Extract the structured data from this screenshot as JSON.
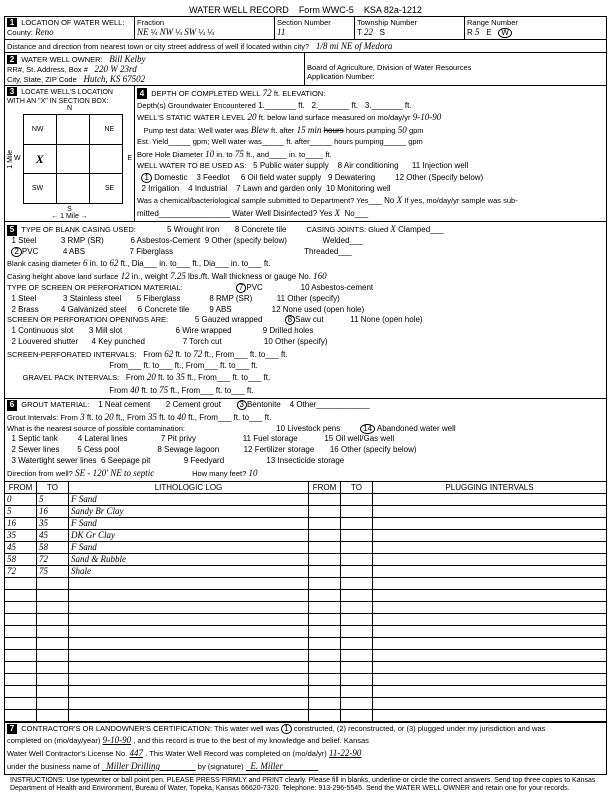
{
  "form": {
    "title": "WATER WELL RECORD",
    "form_no": "Form WWC-5",
    "ksa": "KSA 82a-1212"
  },
  "loc": {
    "header": "LOCATION OF WATER WELL:",
    "county_lbl": "County:",
    "county": "Reno",
    "fraction_lbl": "Fraction",
    "frac1": "NE",
    "q1": "¼",
    "frac2": "NW",
    "q2": "¼",
    "frac3": "SW",
    "q3": "¼",
    "sec_lbl": "Section Number",
    "sec": "11",
    "twp_lbl": "Township Number",
    "twp_t": "T",
    "twp": "22",
    "twp_s": "S",
    "rng_lbl": "Range Number",
    "rng_r": "R",
    "rng": "5",
    "rng_e": "E",
    "rng_w": "W",
    "dist_lbl": "Distance and direction from nearest town or city street address of well if located within city?",
    "dist": "1/8 mi NE of Medora"
  },
  "owner": {
    "header": "WATER WELL OWNER:",
    "name": "Bill Kelby",
    "rr_lbl": "RR#, St. Address, Box #",
    "addr": "220 W 23rd",
    "city_lbl": "City, State, ZIP Code",
    "city": "Hutch, KS  67502",
    "board": "Board of Agriculture, Division of Water Resources",
    "app_lbl": "Application Number:"
  },
  "sec3": {
    "header": "LOCATE WELL'S LOCATION WITH AN \"X\" IN SECTION BOX:",
    "n": "N",
    "s": "S",
    "e": "E",
    "w": "W",
    "nw": "NW",
    "ne": "NE",
    "sw": "SW",
    "se": "SE",
    "x": "X",
    "mile": "1 Mile",
    "mile2": "← 1 Mile →"
  },
  "sec4": {
    "depth_lbl": "DEPTH OF COMPLETED WELL",
    "depth": "72",
    "ft": "ft. ELEVATION:",
    "gw_lbl": "Depth(s) Groundwater Encountered",
    "gw1": "1.",
    "gw2": "2.",
    "gw3": "3.",
    "ft2": "ft.",
    "static_lbl": "WELL'S STATIC WATER LEVEL",
    "static": "20",
    "static2": "ft. below land surface measured on mo/day/yr",
    "static_date": "9-10-90",
    "pump_lbl": "Pump test data:   Well water was",
    "pump": "Blew",
    "pump2": "ft. after",
    "pump_hrs": "15 min",
    "pump3": "hours pumping",
    "pump_gpm": "50",
    "pump4": "gpm",
    "est_lbl": "Est. Yield",
    "est2": "gpm;  Well water was",
    "est3": "ft. after",
    "est4": "hours pumping",
    "est5": "gpm",
    "bore_lbl": "Bore Hole Diameter",
    "bore1": "10",
    "bore_in": "in. to",
    "bore2": "75",
    "bore3": "ft., and",
    "bore4": "in. to",
    "bore5": "ft.",
    "use_lbl": "WELL WATER TO BE USED AS:",
    "u1": "Domestic",
    "u2": "2 Irrigation",
    "u3": "3 Feedlot",
    "u4": "4 Industrial",
    "u5": "5 Public water supply",
    "u6": "6 Oil field water supply",
    "u7": "7 Lawn and garden only",
    "u8": "8 Air conditioning",
    "u9": "9 Dewatering",
    "u10": "10 Monitoring well",
    "u11": "11 Injection well",
    "u12": "12 Other (Specify below)",
    "chem_lbl": "Was a chemical/bacteriological sample submitted to Department?  Yes",
    "chem_no": "No",
    "chem2": "If yes, mo/day/yr sample was sub-",
    "mitted": "mitted",
    "disinfect": "Water Well Disinfected?  Yes",
    "dis_no": "No",
    "dis_x": "X"
  },
  "sec5": {
    "header": "TYPE OF BLANK CASING USED:",
    "c1": "1 Steel",
    "c2": "PVC",
    "c3": "3 RMP (SR)",
    "c4": "4 ABS",
    "c5": "5 Wrought iron",
    "c6": "6 Asbestos-Cement",
    "c7": "7 Fiberglass",
    "c8": "8 Concrete tile",
    "c9": "9 Other (specify below)",
    "joints_lbl": "CASING JOINTS: Glued",
    "joints_x": "X",
    "joints2": "Clamped",
    "joints3": "Welded",
    "joints4": "Threaded",
    "bcd_lbl": "Blank casing diameter",
    "bcd1": "6",
    "bcd_in": "in. to",
    "bcd2": "62",
    "bcd3": "ft., Dia",
    "bcd4": "in. to",
    "bcd5": "ft., Dia",
    "bcd6": "in. to",
    "bcd7": "ft.",
    "ch_lbl": "Casing height above land surface",
    "ch1": "12",
    "ch2": "in., weight",
    "ch3": "7.25",
    "ch4": "lbs./ft. Wall thickness or gauge No.",
    "ch5": "160",
    "perf_lbl": "TYPE OF SCREEN OR PERFORATION MATERIAL:",
    "p1": "1 Steel",
    "p2": "2 Brass",
    "p3": "3 Stainless steel",
    "p4": "4 Galvanized steel",
    "p5": "5 Fiberglass",
    "p6": "6 Concrete tile",
    "p7": "PVC",
    "p8": "8 RMP (SR)",
    "p9": "9 ABS",
    "p10": "10 Asbestos-cement",
    "p11": "11 Other (specify)",
    "p12": "12 None used (open hole)",
    "open_lbl": "SCREEN OR PERFORATION OPENINGS ARE:",
    "o1": "1 Continuous slot",
    "o2": "2 Louvered shutter",
    "o3": "3 Mill slot",
    "o4": "4 Key punched",
    "o5": "5 Gauzed wrapped",
    "o6": "6 Wire wrapped",
    "o7": "7 Torch cut",
    "o8": "Saw cut",
    "o9": "9 Drilled holes",
    "o10": "10 Other (specify)",
    "o11": "11 None (open hole)",
    "si_lbl": "SCREEN-PERFORATED INTERVALS:",
    "si_from": "From",
    "si1": "62",
    "si_ft": "ft. to",
    "si2": "72",
    "si3": "ft., From",
    "si4": "ft. to",
    "si5": "ft.",
    "si_from2": "From",
    "si6": "ft. to",
    "si7": "ft., From",
    "si8": "ft. to",
    "si9": "ft.",
    "gp_lbl": "GRAVEL PACK INTERVALS:",
    "gp1": "20",
    "gp2": "35",
    "gp3": "40",
    "gp4": "75"
  },
  "sec6": {
    "header": "GROUT MATERIAL:",
    "g1": "1 Neat cement",
    "g2": "2 Cement grout",
    "g3": "Bentonite",
    "g4": "4 Other",
    "gi_lbl": "Grout Intervals:   From",
    "gi1": "3",
    "gi2": "ft. to",
    "gi3": "20",
    "gi4": "ft., From",
    "gi5": "35",
    "gi6": "ft. to",
    "gi7": "40",
    "gi8": "ft., From",
    "gi9": "ft. to",
    "gi10": "ft.",
    "src_lbl": "What is the nearest source of possible contamination:",
    "s1": "1 Septic tank",
    "s2": "2 Sewer lines",
    "s3": "3 Watertight sewer lines",
    "s4": "4 Lateral lines",
    "s5": "5 Cess pool",
    "s6": "6 Seepage pit",
    "s7": "7 Pit privy",
    "s8": "8 Sewage lagoon",
    "s9": "9 Feedyard",
    "s10": "10 Livestock pens",
    "s11": "11 Fuel storage",
    "s12": "12 Fertilizer storage",
    "s13": "13 Insecticide storage",
    "s14": "Abandoned water well",
    "s15": "15 Oil well/Gas well",
    "s16": "16 Other (specify below)",
    "dir_lbl": "Direction from well?",
    "dir": "SE    - 120' NE  to septic",
    "feet_lbl": "How many feet?",
    "feet": "10"
  },
  "log": {
    "from": "FROM",
    "to": "TO",
    "lith": "LITHOLOGIC LOG",
    "plug": "PLUGGING INTERVALS",
    "rows": [
      {
        "f": "0",
        "t": "5",
        "d": "F Sand"
      },
      {
        "f": "5",
        "t": "16",
        "d": "Sandy Br Clay"
      },
      {
        "f": "16",
        "t": "35",
        "d": "F Sand"
      },
      {
        "f": "35",
        "t": "45",
        "d": "DK Gr Clay"
      },
      {
        "f": "45",
        "t": "58",
        "d": "F Sand"
      },
      {
        "f": "58",
        "t": "72",
        "d": "Sand & Rubble"
      },
      {
        "f": "72",
        "t": "75",
        "d": "Shale"
      },
      {
        "f": "",
        "t": "",
        "d": ""
      },
      {
        "f": "",
        "t": "",
        "d": ""
      },
      {
        "f": "",
        "t": "",
        "d": ""
      },
      {
        "f": "",
        "t": "",
        "d": ""
      },
      {
        "f": "",
        "t": "",
        "d": ""
      },
      {
        "f": "",
        "t": "",
        "d": ""
      },
      {
        "f": "",
        "t": "",
        "d": ""
      },
      {
        "f": "",
        "t": "",
        "d": ""
      },
      {
        "f": "",
        "t": "",
        "d": ""
      },
      {
        "f": "",
        "t": "",
        "d": ""
      },
      {
        "f": "",
        "t": "",
        "d": ""
      },
      {
        "f": "",
        "t": "",
        "d": ""
      }
    ]
  },
  "sec7": {
    "cert": "CONTRACTOR'S OR LANDOWNER'S CERTIFICATION: This water well was",
    "opt1": "constructed, (2) reconstructed, or (3) plugged under my jurisdiction and was",
    "cert2": "completed on (mo/day/year)",
    "date1": "9-10-90",
    "cert3": ", and this record is true to the best of my knowledge and belief. Kansas",
    "cert4": "Water Well Contractor's License No.",
    "lic": "447",
    "cert5": ". This Water Well Record was completed on (mo/da/yr)",
    "date2": "11-22-90",
    "cert6": "under the business name of",
    "biz": "Miller Drilling",
    "sig_lbl": "by (signature)",
    "sig": "E. Miller"
  },
  "footer": "INSTRUCTIONS: Use typewriter or ball point pen. PLEASE PRESS FIRMLY and PRINT clearly. Please fill in blanks, underline or circle the correct answers. Send top three copies to Kansas Department of Health and Environment, Bureau of Water, Topeka, Kansas 66620-7320. Telephone: 913-296-5545. Send the WATER WELL OWNER and retain one for your records."
}
